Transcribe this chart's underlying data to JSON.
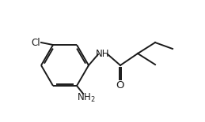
{
  "bg_color": "#ffffff",
  "line_color": "#1a1a1a",
  "line_width": 1.4,
  "font_size": 8.5,
  "figsize": [
    2.59,
    1.55
  ],
  "dpi": 100,
  "xlim": [
    0,
    2.59
  ],
  "ylim": [
    0,
    1.55
  ]
}
